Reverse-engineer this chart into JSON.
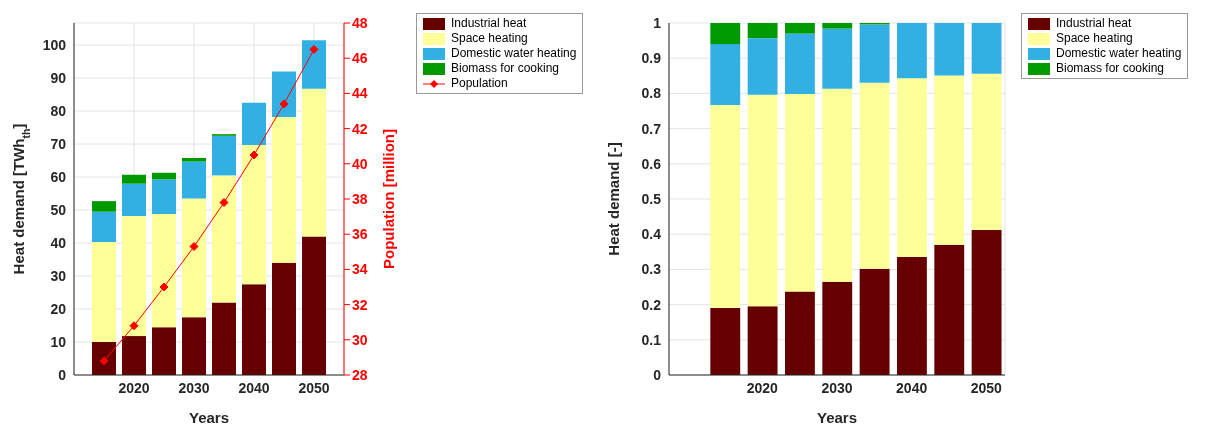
{
  "chart_data": [
    {
      "type": "bar",
      "stacked": true,
      "x": [
        2015,
        2020,
        2025,
        2030,
        2035,
        2040,
        2045,
        2050
      ],
      "xlim": [
        2010,
        2055
      ],
      "xticks": [
        2020,
        2030,
        2040,
        2050
      ],
      "ylim": [
        0,
        106.7
      ],
      "yticks": [
        0,
        10,
        20,
        30,
        40,
        50,
        60,
        70,
        80,
        90,
        100
      ],
      "y2lim": [
        28,
        48
      ],
      "y2ticks": [
        28,
        30,
        32,
        34,
        36,
        38,
        40,
        42,
        44,
        46,
        48
      ],
      "xlabel": "Years",
      "ylabel": "Heat demand [TWh$_{th}$]",
      "y2label": "Population [million]",
      "grid": true,
      "legend": "top right",
      "series": [
        {
          "name": "Industrial heat",
          "color": "#660000",
          "values": [
            10,
            11.8,
            14.5,
            17.5,
            22,
            27.5,
            34,
            42
          ]
        },
        {
          "name": "Space heating",
          "color": "#ffff99",
          "values": [
            30.3,
            36.4,
            34.3,
            36,
            38.5,
            42.2,
            44.2,
            44.8
          ]
        },
        {
          "name": "Domestic water heating",
          "color": "#33b0e3",
          "values": [
            9.2,
            9.8,
            10.5,
            11.2,
            12,
            12.8,
            13.8,
            14.7
          ]
        },
        {
          "name": "Biomass for cooking",
          "color": "#009900",
          "values": [
            3.2,
            2.7,
            2,
            1.1,
            0.5,
            0,
            0,
            0
          ]
        },
        {
          "name": "Population",
          "type": "line",
          "axis": "y2",
          "color": "#ff0000",
          "marker": "diamond",
          "values": [
            28.8,
            30.8,
            33,
            35.3,
            37.8,
            40.5,
            43.4,
            46.5
          ]
        }
      ]
    },
    {
      "type": "bar",
      "stacked": true,
      "x": [
        2015,
        2020,
        2025,
        2030,
        2035,
        2040,
        2045,
        2050
      ],
      "xlim": [
        2007.5,
        2052.5
      ],
      "xticks": [
        2020,
        2030,
        2040,
        2050
      ],
      "ylim": [
        0,
        1
      ],
      "yticks": [
        0,
        0.1,
        0.2,
        0.3,
        0.4,
        0.5,
        0.6,
        0.7,
        0.8,
        0.9,
        1
      ],
      "xlabel": "Years",
      "ylabel": "Heat demand [-]",
      "grid": true,
      "legend": "top right",
      "series": [
        {
          "name": "Industrial heat",
          "color": "#660000",
          "values": [
            0.19,
            0.195,
            0.237,
            0.265,
            0.302,
            0.335,
            0.37,
            0.412
          ]
        },
        {
          "name": "Space heating",
          "color": "#ffff99",
          "values": [
            0.577,
            0.601,
            0.561,
            0.548,
            0.528,
            0.508,
            0.481,
            0.444
          ]
        },
        {
          "name": "Domestic water heating",
          "color": "#33b0e3",
          "values": [
            0.173,
            0.161,
            0.172,
            0.171,
            0.166,
            0.157,
            0.149,
            0.144
          ]
        },
        {
          "name": "Biomass for cooking",
          "color": "#009900",
          "values": [
            0.06,
            0.043,
            0.03,
            0.016,
            0.004,
            0,
            0,
            0
          ]
        }
      ]
    }
  ]
}
